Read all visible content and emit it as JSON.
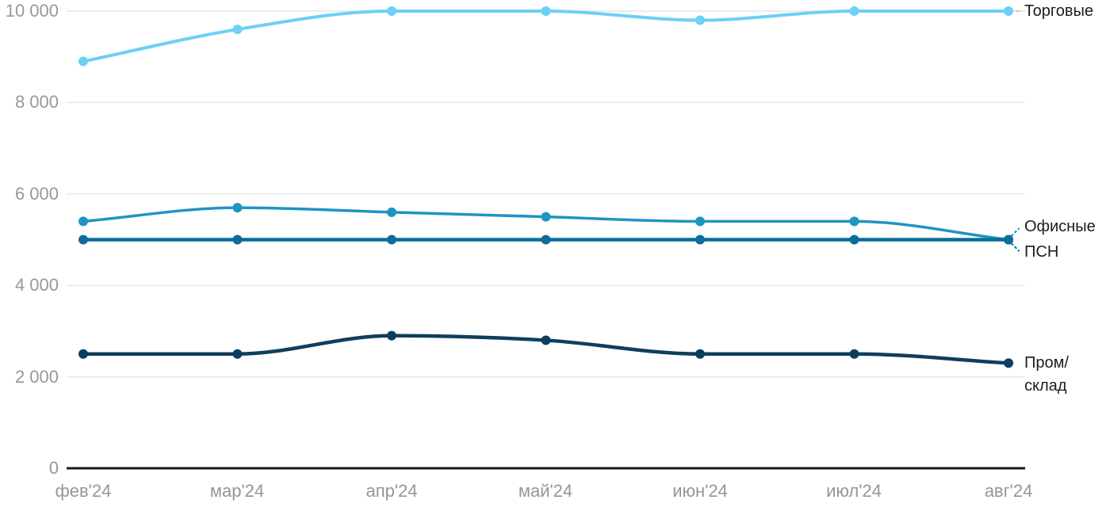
{
  "chart_data": {
    "type": "line",
    "title": "",
    "categories": [
      "фев'24",
      "мар'24",
      "апр'24",
      "май'24",
      "июн'24",
      "июл'24",
      "авг'24"
    ],
    "series": [
      {
        "name": "Торговые",
        "color": "#6DD0F5",
        "values": [
          8900,
          9600,
          10000,
          10000,
          9800,
          10000,
          10000
        ],
        "label_lines": [
          "Торговые"
        ]
      },
      {
        "name": "Офисные",
        "color": "#1E95C2",
        "values": [
          5400,
          5700,
          5600,
          5500,
          5400,
          5400,
          5000
        ],
        "label_lines": [
          "Офисные"
        ]
      },
      {
        "name": "ПСН",
        "color": "#0B6D99",
        "values": [
          5000,
          5000,
          5000,
          5000,
          5000,
          5000,
          5000
        ],
        "label_lines": [
          "ПСН"
        ]
      },
      {
        "name": "Пром/склад",
        "color": "#0E3E5F",
        "values": [
          2500,
          2500,
          2900,
          2800,
          2500,
          2500,
          2300
        ],
        "label_lines": [
          "Пром/",
          "склад"
        ]
      }
    ],
    "xlabel": "",
    "ylabel": "",
    "ylim": [
      0,
      10000
    ],
    "yticks": [
      0,
      2000,
      4000,
      6000,
      8000,
      10000
    ],
    "ytick_labels": [
      "0",
      "2 000",
      "4 000",
      "6 000",
      "8 000",
      "10 000"
    ],
    "grid": true,
    "legend_position": "right-end-labels"
  },
  "colors": {
    "background": "#ffffff",
    "grid": "#e7e7e7",
    "axis": "#1a1a1a",
    "tick_label": "#98989d",
    "series_label": "#1c1c1c",
    "connector": "#cccccc"
  }
}
